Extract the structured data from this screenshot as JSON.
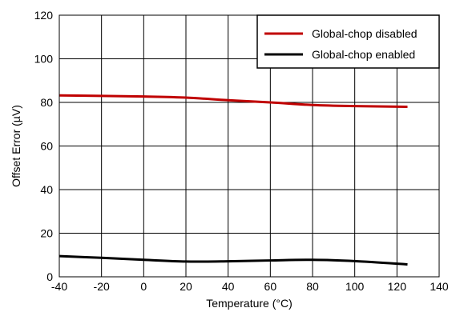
{
  "chart_data": {
    "type": "line",
    "title": "",
    "xlabel": "Temperature (°C)",
    "ylabel": "Offset Error (µV)",
    "xlim": [
      -40,
      140
    ],
    "ylim": [
      0,
      120
    ],
    "xticks": [
      -40,
      -20,
      0,
      20,
      40,
      60,
      80,
      100,
      120,
      140
    ],
    "yticks": [
      0,
      20,
      40,
      60,
      80,
      100,
      120
    ],
    "grid": true,
    "legend_position": "top-right",
    "series": [
      {
        "name": "Global-chop disabled",
        "color": "#c00000",
        "x": [
          -40,
          -20,
          0,
          20,
          40,
          60,
          80,
          100,
          125
        ],
        "y": [
          83.2,
          83.0,
          82.7,
          82.2,
          81.0,
          80.0,
          78.8,
          78.3,
          78.0
        ]
      },
      {
        "name": "Global-chop enabled",
        "color": "#000000",
        "x": [
          -40,
          -20,
          0,
          20,
          40,
          60,
          80,
          100,
          125
        ],
        "y": [
          9.5,
          8.7,
          7.8,
          7.0,
          7.1,
          7.5,
          7.8,
          7.2,
          5.7
        ]
      }
    ]
  }
}
